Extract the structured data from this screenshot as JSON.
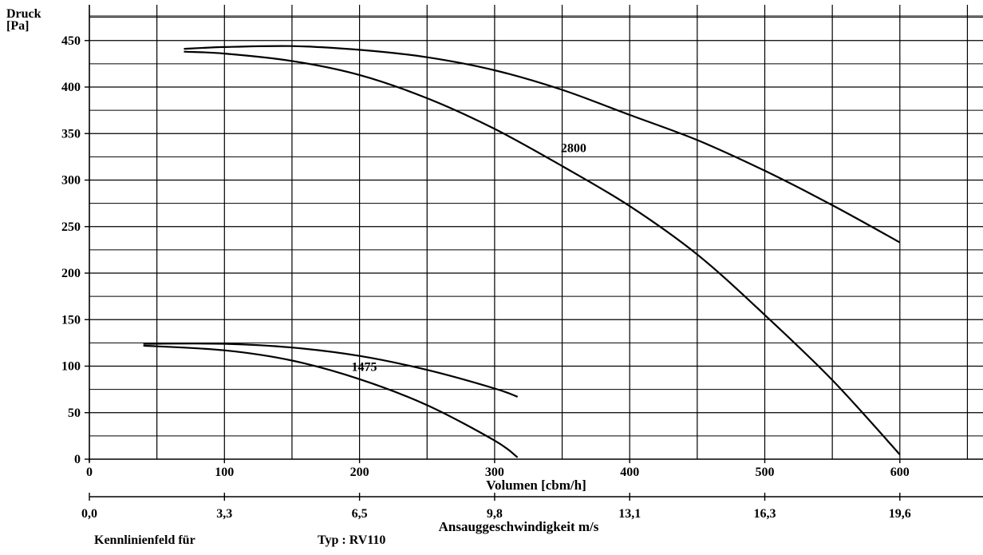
{
  "chart_data": {
    "type": "line",
    "ylabel_line1": "Druck",
    "ylabel_line2": "[Pa]",
    "xlabel": "Volumen [cbm/h]",
    "x2label": "Ansauggeschwindigkeit m/s",
    "xlim": [
      0,
      660
    ],
    "ylim": [
      0,
      480
    ],
    "grid": true,
    "y_ticks": [
      0,
      50,
      100,
      150,
      200,
      250,
      300,
      350,
      400,
      450
    ],
    "x_ticks": [
      0,
      100,
      200,
      300,
      400,
      500,
      600
    ],
    "x2_ticks": [
      {
        "at": 0,
        "label": "0,0"
      },
      {
        "at": 100,
        "label": "3,3"
      },
      {
        "at": 200,
        "label": "6,5"
      },
      {
        "at": 300,
        "label": "9,8"
      },
      {
        "at": 400,
        "label": "13,1"
      },
      {
        "at": 500,
        "label": "16,3"
      },
      {
        "at": 600,
        "label": "19,6"
      }
    ],
    "series": [
      {
        "name": "2800",
        "label_at": [
          349,
          330
        ],
        "upper": {
          "x": [
            70,
            100,
            150,
            200,
            250,
            300,
            350,
            400,
            450,
            500,
            550,
            600
          ],
          "y": [
            441,
            443,
            444,
            440,
            432,
            418,
            397,
            370,
            343,
            310,
            273,
            233
          ]
        },
        "lower": {
          "x": [
            70,
            100,
            150,
            200,
            250,
            300,
            350,
            400,
            450,
            500,
            550,
            600
          ],
          "y": [
            438,
            436,
            428,
            413,
            388,
            355,
            315,
            272,
            220,
            155,
            85,
            5
          ]
        }
      },
      {
        "name": "1475",
        "label_at": [
          194,
          95
        ],
        "upper": {
          "x": [
            40,
            100,
            150,
            200,
            250,
            300,
            317
          ],
          "y": [
            124,
            124,
            120,
            111,
            96,
            76,
            67
          ]
        },
        "lower": {
          "x": [
            40,
            100,
            150,
            200,
            250,
            300,
            317
          ],
          "y": [
            122,
            117,
            106,
            86,
            58,
            20,
            2
          ]
        }
      }
    ]
  },
  "footer": {
    "left": "Kennlinienfeld für",
    "right": "Typ : RV110"
  }
}
